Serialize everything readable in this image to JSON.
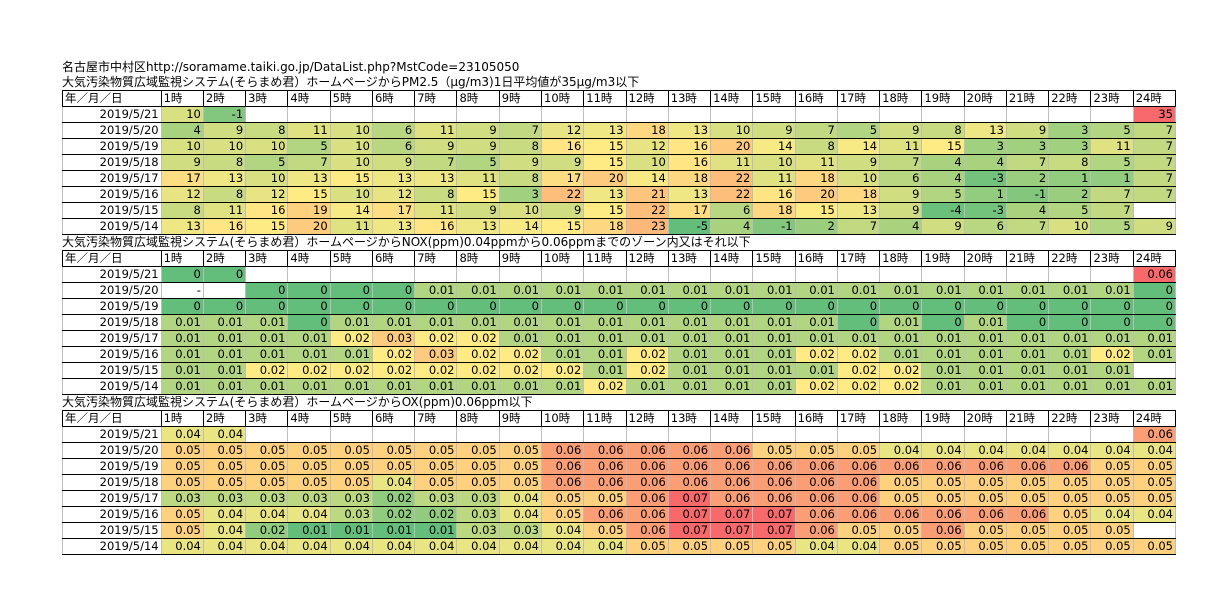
{
  "header_line": "名古屋市中村区http://soramame.taiki.go.jp/DataList.php?MstCode=23105050",
  "column_headers": [
    "年／月／日",
    "1時",
    "2時",
    "3時",
    "4時",
    "5時",
    "6時",
    "7時",
    "8時",
    "9時",
    "10時",
    "11時",
    "12時",
    "13時",
    "14時",
    "15時",
    "16時",
    "17時",
    "18時",
    "19時",
    "20時",
    "21時",
    "22時",
    "23時",
    "24時"
  ],
  "colors": {
    "green": "#63be7b",
    "yellow": "#ffeb84",
    "red": "#f8696b",
    "pm25_scale": [
      -5,
      15,
      35
    ],
    "nox_scale": [
      0,
      0.02,
      0.06
    ],
    "ox_scale": [
      0.01,
      0.045,
      0.07
    ]
  },
  "sections": [
    {
      "key": "pm25",
      "title": "大気汚染物質広域監視システム(そらまめ君）ホームページからPM2.5（μg/m3)1日平均値が35μg/m3以下",
      "rows": [
        {
          "date": "2019/5/21",
          "values": [
            "10",
            "-1",
            "",
            "",
            "",
            "",
            "",
            "",
            "",
            "",
            "",
            "",
            "",
            "",
            "",
            "",
            "",
            "",
            "",
            "",
            "",
            "",
            "",
            "35"
          ]
        },
        {
          "date": "2019/5/20",
          "values": [
            "4",
            "9",
            "8",
            "11",
            "10",
            "6",
            "11",
            "9",
            "7",
            "12",
            "13",
            "18",
            "13",
            "10",
            "9",
            "7",
            "5",
            "9",
            "8",
            "13",
            "9",
            "3",
            "5",
            "7"
          ]
        },
        {
          "date": "2019/5/19",
          "values": [
            "10",
            "10",
            "10",
            "5",
            "10",
            "6",
            "9",
            "9",
            "8",
            "16",
            "15",
            "12",
            "16",
            "20",
            "14",
            "8",
            "14",
            "11",
            "15",
            "3",
            "3",
            "3",
            "11",
            "7"
          ]
        },
        {
          "date": "2019/5/18",
          "values": [
            "9",
            "8",
            "5",
            "7",
            "10",
            "9",
            "7",
            "5",
            "9",
            "9",
            "15",
            "10",
            "16",
            "11",
            "10",
            "11",
            "9",
            "7",
            "4",
            "4",
            "7",
            "8",
            "5",
            "7"
          ]
        },
        {
          "date": "2019/5/17",
          "values": [
            "17",
            "13",
            "10",
            "13",
            "15",
            "13",
            "13",
            "11",
            "8",
            "17",
            "20",
            "14",
            "18",
            "22",
            "11",
            "18",
            "10",
            "6",
            "4",
            "-3",
            "2",
            "1",
            "1",
            "7"
          ]
        },
        {
          "date": "2019/5/16",
          "values": [
            "12",
            "8",
            "12",
            "15",
            "10",
            "12",
            "8",
            "15",
            "3",
            "22",
            "13",
            "21",
            "13",
            "22",
            "16",
            "20",
            "18",
            "9",
            "5",
            "1",
            "-1",
            "2",
            "7",
            "7"
          ]
        },
        {
          "date": "2019/5/15",
          "values": [
            "8",
            "11",
            "16",
            "19",
            "14",
            "17",
            "11",
            "9",
            "10",
            "9",
            "15",
            "22",
            "17",
            "6",
            "18",
            "15",
            "13",
            "9",
            "-4",
            "-3",
            "4",
            "5",
            "7",
            ""
          ]
        },
        {
          "date": "2019/5/14",
          "values": [
            "13",
            "16",
            "15",
            "20",
            "11",
            "13",
            "16",
            "13",
            "14",
            "15",
            "18",
            "23",
            "-5",
            "4",
            "-1",
            "2",
            "7",
            "4",
            "9",
            "6",
            "7",
            "10",
            "5",
            "9",
            "9"
          ]
        }
      ]
    },
    {
      "key": "nox",
      "title": "大気汚染物質広域監視システム(そらまめ君）ホームページからNOX(ppm)0.04ppmから0.06ppmまでのゾーン内又はそれ以下",
      "rows": [
        {
          "date": "2019/5/21",
          "values": [
            "0",
            "0",
            "",
            "",
            "",
            "",
            "",
            "",
            "",
            "",
            "",
            "",
            "",
            "",
            "",
            "",
            "",
            "",
            "",
            "",
            "",
            "",
            "",
            "0.06"
          ]
        },
        {
          "date": "2019/5/20",
          "values": [
            "-",
            "",
            "0",
            "0",
            "0",
            "0",
            "0.01",
            "0.01",
            "0.01",
            "0.01",
            "0.01",
            "0.01",
            "0.01",
            "0.01",
            "0.01",
            "0.01",
            "0.01",
            "0.01",
            "0.01",
            "0.01",
            "0.01",
            "0.01",
            "0.01",
            "0"
          ]
        },
        {
          "date": "2019/5/19",
          "values": [
            "0",
            "0",
            "0",
            "0",
            "0",
            "0",
            "0",
            "0",
            "0",
            "0",
            "0",
            "0",
            "0",
            "0",
            "0",
            "0",
            "0",
            "0",
            "0",
            "0",
            "0",
            "0",
            "0",
            "0"
          ]
        },
        {
          "date": "2019/5/18",
          "values": [
            "0.01",
            "0.01",
            "0.01",
            "0",
            "0.01",
            "0.01",
            "0.01",
            "0.01",
            "0.01",
            "0.01",
            "0.01",
            "0.01",
            "0.01",
            "0.01",
            "0.01",
            "0.01",
            "0",
            "0.01",
            "0",
            "0.01",
            "0",
            "0",
            "0",
            "0"
          ]
        },
        {
          "date": "2019/5/17",
          "values": [
            "0.01",
            "0.01",
            "0.01",
            "0.01",
            "0.02",
            "0.03",
            "0.02",
            "0.02",
            "0.01",
            "0.01",
            "0.01",
            "0.01",
            "0.01",
            "0.01",
            "0.01",
            "0.01",
            "0.01",
            "0.01",
            "0.01",
            "0.01",
            "0.01",
            "0.01",
            "0.01",
            "0.01"
          ]
        },
        {
          "date": "2019/5/16",
          "values": [
            "0.01",
            "0.01",
            "0.01",
            "0.01",
            "0.01",
            "0.02",
            "0.03",
            "0.02",
            "0.02",
            "0.01",
            "0.01",
            "0.02",
            "0.01",
            "0.01",
            "0.01",
            "0.02",
            "0.02",
            "0.01",
            "0.01",
            "0.01",
            "0.01",
            "0.01",
            "0.02",
            "0.01"
          ]
        },
        {
          "date": "2019/5/15",
          "values": [
            "0.01",
            "0.01",
            "0.02",
            "0.02",
            "0.02",
            "0.02",
            "0.02",
            "0.02",
            "0.02",
            "0.02",
            "0.01",
            "0.02",
            "0.01",
            "0.01",
            "0.01",
            "0.01",
            "0.02",
            "0.02",
            "0.01",
            "0.01",
            "0.01",
            "0.01",
            "0.01",
            ""
          ]
        },
        {
          "date": "2019/5/14",
          "values": [
            "0.01",
            "0.01",
            "0.01",
            "0.01",
            "0.01",
            "0.01",
            "0.01",
            "0.01",
            "0.01",
            "0.01",
            "0.02",
            "0.01",
            "0.01",
            "0.01",
            "0.01",
            "0.02",
            "0.02",
            "0.02",
            "0.01",
            "0.01",
            "0.01",
            "0.01",
            "0.01",
            "0.01"
          ]
        }
      ]
    },
    {
      "key": "ox",
      "title": "大気汚染物質広域監視システム(そらまめ君）ホームページからOX(ppm)0.06ppm以下",
      "rows": [
        {
          "date": "2019/5/21",
          "values": [
            "0.04",
            "0.04",
            "",
            "",
            "",
            "",
            "",
            "",
            "",
            "",
            "",
            "",
            "",
            "",
            "",
            "",
            "",
            "",
            "",
            "",
            "",
            "",
            "",
            "0.06"
          ]
        },
        {
          "date": "2019/5/20",
          "values": [
            "0.05",
            "0.05",
            "0.05",
            "0.05",
            "0.05",
            "0.05",
            "0.05",
            "0.05",
            "0.05",
            "0.06",
            "0.06",
            "0.06",
            "0.06",
            "0.06",
            "0.05",
            "0.05",
            "0.05",
            "0.04",
            "0.04",
            "0.04",
            "0.04",
            "0.04",
            "0.04",
            "0.04"
          ]
        },
        {
          "date": "2019/5/19",
          "values": [
            "0.05",
            "0.05",
            "0.05",
            "0.05",
            "0.05",
            "0.05",
            "0.05",
            "0.05",
            "0.05",
            "0.06",
            "0.06",
            "0.06",
            "0.06",
            "0.06",
            "0.06",
            "0.06",
            "0.06",
            "0.06",
            "0.06",
            "0.06",
            "0.06",
            "0.06",
            "0.05",
            "0.05"
          ]
        },
        {
          "date": "2019/5/18",
          "values": [
            "0.05",
            "0.05",
            "0.05",
            "0.05",
            "0.05",
            "0.04",
            "0.05",
            "0.05",
            "0.05",
            "0.06",
            "0.06",
            "0.06",
            "0.06",
            "0.06",
            "0.06",
            "0.06",
            "0.06",
            "0.05",
            "0.05",
            "0.05",
            "0.05",
            "0.05",
            "0.05",
            "0.05"
          ]
        },
        {
          "date": "2019/5/17",
          "values": [
            "0.03",
            "0.03",
            "0.03",
            "0.03",
            "0.03",
            "0.02",
            "0.03",
            "0.03",
            "0.04",
            "0.05",
            "0.05",
            "0.06",
            "0.07",
            "0.06",
            "0.06",
            "0.06",
            "0.06",
            "0.05",
            "0.05",
            "0.05",
            "0.05",
            "0.05",
            "0.05",
            "0.05"
          ]
        },
        {
          "date": "2019/5/16",
          "values": [
            "0.05",
            "0.04",
            "0.04",
            "0.04",
            "0.03",
            "0.02",
            "0.02",
            "0.03",
            "0.04",
            "0.05",
            "0.06",
            "0.06",
            "0.07",
            "0.07",
            "0.07",
            "0.06",
            "0.06",
            "0.06",
            "0.06",
            "0.06",
            "0.06",
            "0.05",
            "0.04",
            "0.04"
          ]
        },
        {
          "date": "2019/5/15",
          "values": [
            "0.05",
            "0.04",
            "0.02",
            "0.01",
            "0.01",
            "0.01",
            "0.01",
            "0.03",
            "0.03",
            "0.04",
            "0.05",
            "0.06",
            "0.07",
            "0.07",
            "0.07",
            "0.06",
            "0.05",
            "0.05",
            "0.06",
            "0.05",
            "0.05",
            "0.05",
            "0.05",
            ""
          ]
        },
        {
          "date": "2019/5/14",
          "values": [
            "0.04",
            "0.04",
            "0.04",
            "0.04",
            "0.04",
            "0.04",
            "0.04",
            "0.04",
            "0.04",
            "0.04",
            "0.04",
            "0.05",
            "0.05",
            "0.05",
            "0.05",
            "0.04",
            "0.04",
            "0.05",
            "0.05",
            "0.05",
            "0.05",
            "0.05",
            "0.05",
            "0.05"
          ]
        }
      ]
    }
  ]
}
